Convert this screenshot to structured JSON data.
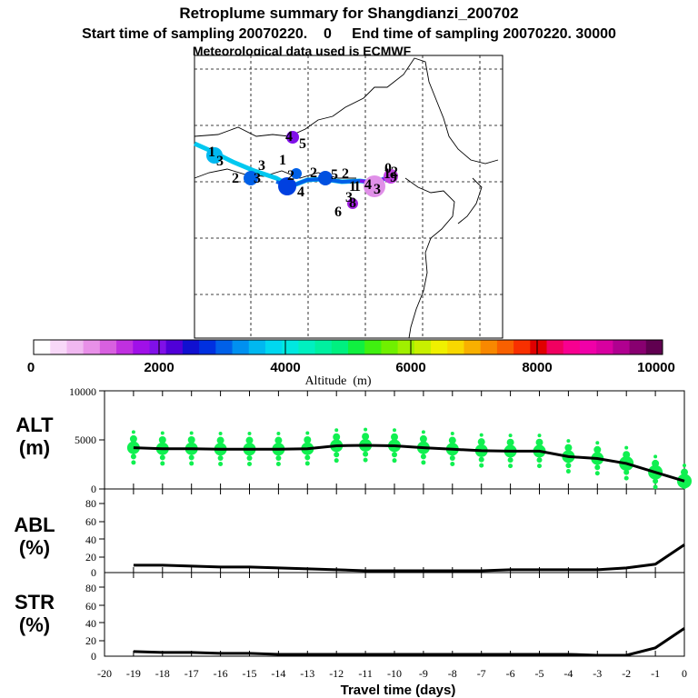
{
  "title": "Retroplume summary for Shangdianzi_200702",
  "subtitle": "Start time of sampling 20070220.    0     End time of sampling 20070220. 30000",
  "met_line": "Meteorological data used is ECMWF",
  "colorbar": {
    "label": "Altitude  (m)",
    "tick_labels": [
      "0",
      "2000",
      "4000",
      "6000",
      "8000",
      "10000"
    ],
    "colors": [
      "#ffffff",
      "#f8d8f8",
      "#f0b8f0",
      "#e890e8",
      "#d860e0",
      "#c030e0",
      "#a010e8",
      "#8010e8",
      "#5000d8",
      "#1010d0",
      "#0030e0",
      "#0060e8",
      "#0090f0",
      "#00b8f0",
      "#00d8f0",
      "#00e8e0",
      "#00f0c0",
      "#00f0a0",
      "#00f080",
      "#10f040",
      "#40f010",
      "#70f000",
      "#a0f000",
      "#c8f000",
      "#f0f000",
      "#f8d800",
      "#f8b000",
      "#f88800",
      "#f86000",
      "#f83000",
      "#e00000",
      "#f00060",
      "#f80090",
      "#f000a8",
      "#d800a0",
      "#b00090",
      "#880070",
      "#600050"
    ]
  },
  "map_labels": [
    "4",
    "5",
    "1",
    "3",
    "2",
    "3",
    "3",
    "1",
    "2",
    "4",
    "2",
    "5",
    "2",
    "1",
    "4",
    "3",
    "1",
    "2",
    "0",
    "9",
    "1",
    "8",
    "6",
    "3"
  ],
  "panels": {
    "alt": {
      "label1": "ALT",
      "label2": "(m)",
      "yticks": [
        "10000",
        "5000",
        "0"
      ]
    },
    "abl": {
      "label1": "ABL",
      "label2": "(%)",
      "yticks": [
        "80",
        "60",
        "40",
        "20",
        "0"
      ]
    },
    "str": {
      "label1": "STR",
      "label2": "(%)",
      "yticks": [
        "80",
        "60",
        "40",
        "20",
        "0"
      ]
    }
  },
  "xticks": [
    "-20",
    "-19",
    "-18",
    "-17",
    "-16",
    "-15",
    "-14",
    "-13",
    "-12",
    "-11",
    "-10",
    "-9",
    "-8",
    "-7",
    "-6",
    "-5",
    "-4",
    "-3",
    "-2",
    "-1",
    "0"
  ],
  "xlabel": "Travel time (days)",
  "chart_data": {
    "type": "line",
    "x": [
      -19,
      -18,
      -17,
      -16,
      -15,
      -14,
      -13,
      -12,
      -11,
      -10,
      -9,
      -8,
      -7,
      -6,
      -5,
      -4,
      -3,
      -2,
      -1,
      0
    ],
    "xlim": [
      -20,
      0
    ],
    "xlabel": "Travel time (days)",
    "series": [
      {
        "name": "ALT (m)",
        "ylim": [
          0,
          10000
        ],
        "values": [
          4200,
          4100,
          4100,
          4050,
          4050,
          4050,
          4100,
          4400,
          4450,
          4400,
          4200,
          4050,
          3900,
          3850,
          3850,
          3300,
          3100,
          2600,
          1700,
          800
        ]
      },
      {
        "name": "ABL (%)",
        "ylim": [
          0,
          90
        ],
        "values": [
          8,
          8,
          7,
          6,
          6,
          5,
          4,
          3,
          2,
          2,
          2,
          2,
          2,
          3,
          3,
          3,
          3,
          5,
          9,
          30
        ]
      },
      {
        "name": "STR (%)",
        "ylim": [
          0,
          90
        ],
        "values": [
          5,
          4,
          4,
          3,
          3,
          2,
          2,
          2,
          2,
          2,
          2,
          2,
          2,
          2,
          2,
          2,
          1,
          1,
          9,
          30
        ]
      }
    ]
  }
}
